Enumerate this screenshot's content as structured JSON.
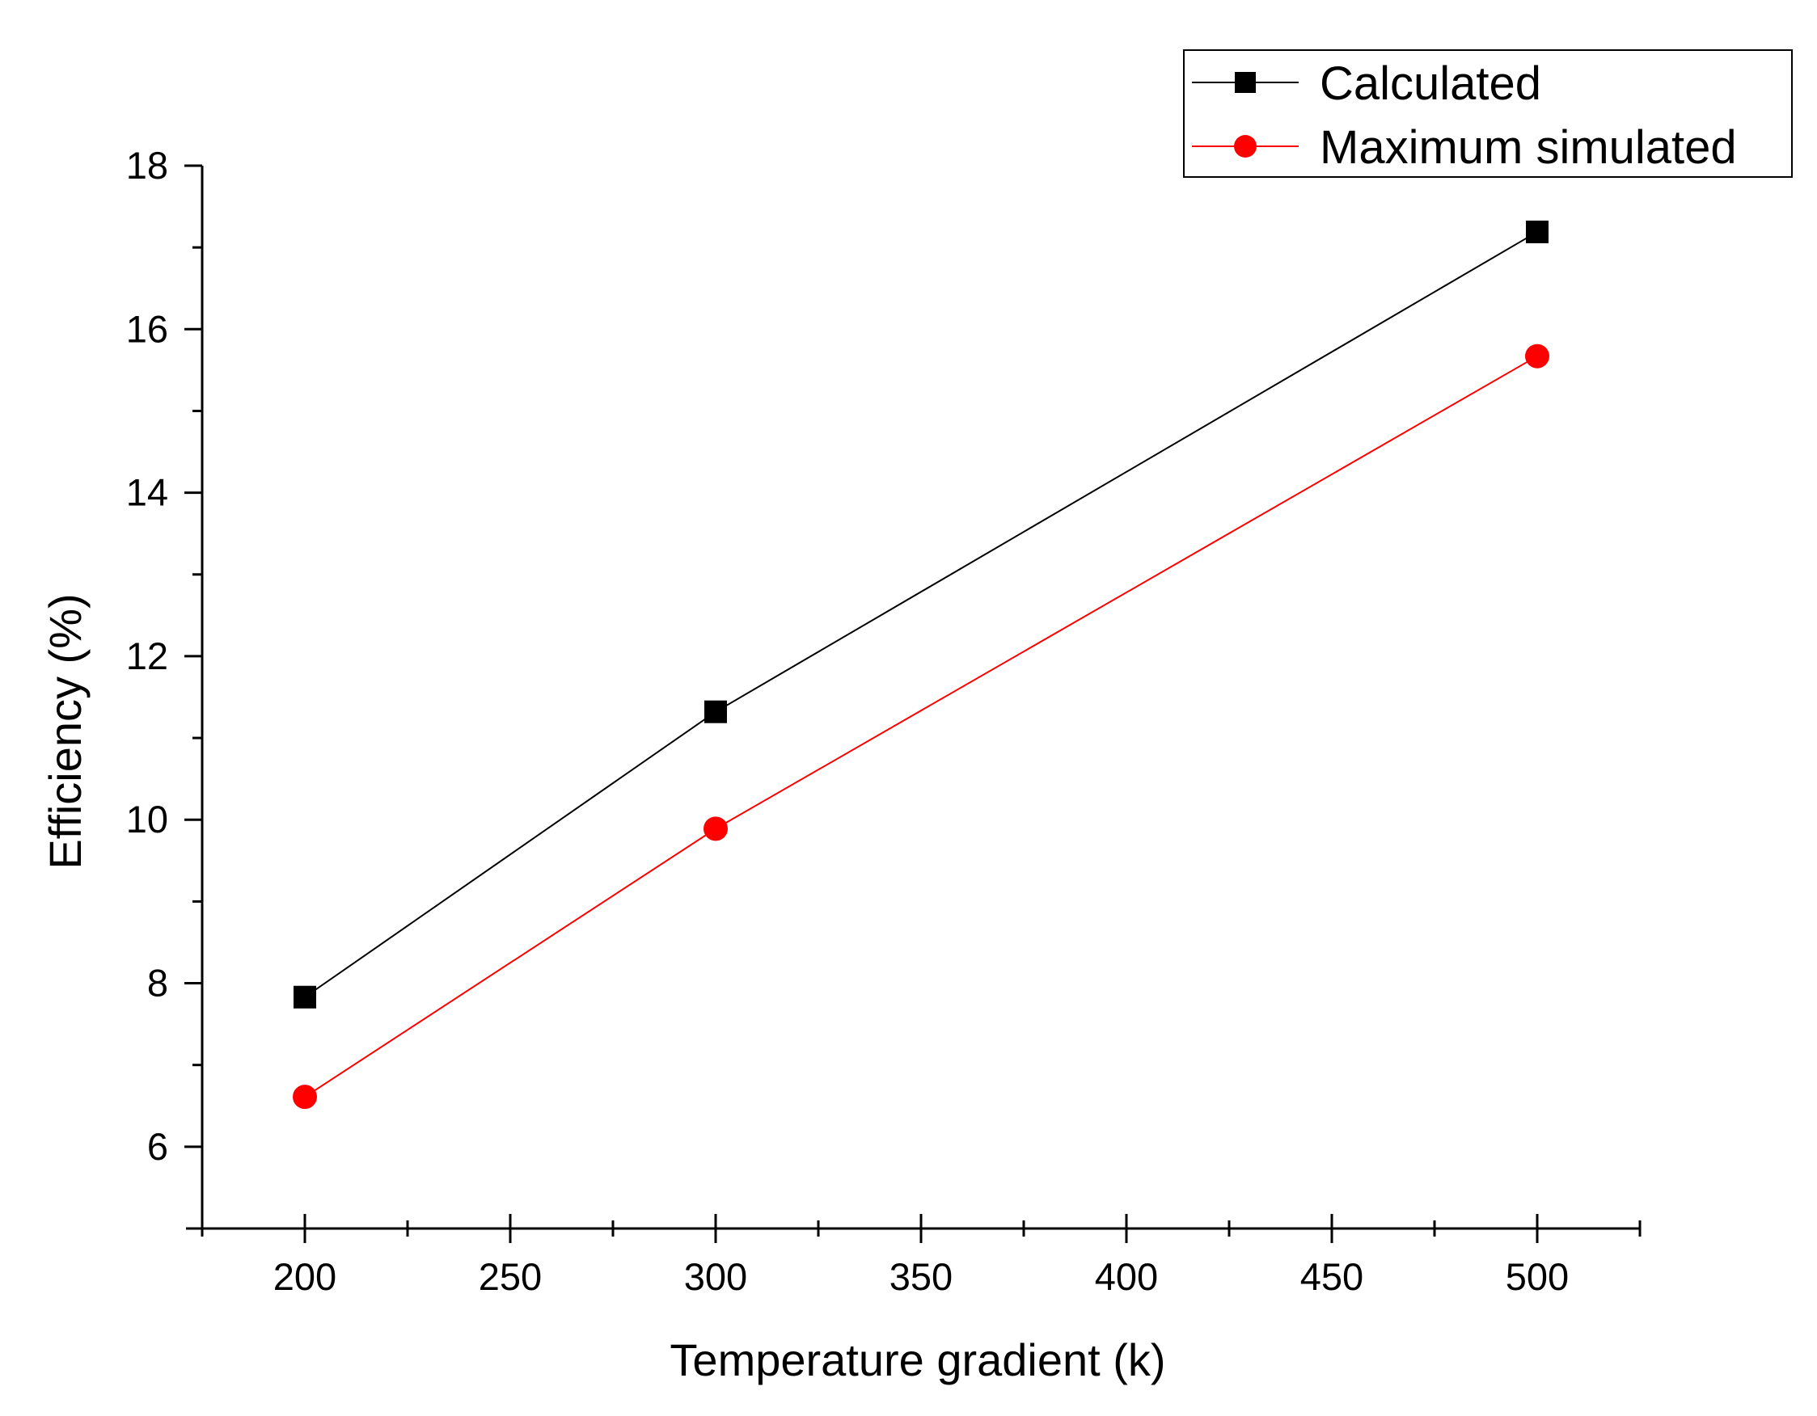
{
  "chart_data": {
    "type": "line",
    "title": "",
    "xlabel": "Temperature gradient (k)",
    "ylabel": "Efficiency (%)",
    "xlim": [
      175,
      525
    ],
    "ylim": [
      5,
      18
    ],
    "xticks": [
      200,
      250,
      300,
      350,
      400,
      450,
      500
    ],
    "yticks": [
      6,
      8,
      10,
      12,
      14,
      16,
      18
    ],
    "grid": false,
    "legend_position": "top-right",
    "series": [
      {
        "name": "Calculated",
        "color": "#000000",
        "marker": "square",
        "x": [
          200,
          300,
          500
        ],
        "y": [
          7.83,
          11.32,
          17.19
        ]
      },
      {
        "name": "Maximum simulated",
        "color": "#ff0000",
        "marker": "circle",
        "x": [
          200,
          300,
          500
        ],
        "y": [
          6.61,
          9.89,
          15.67
        ]
      }
    ]
  }
}
